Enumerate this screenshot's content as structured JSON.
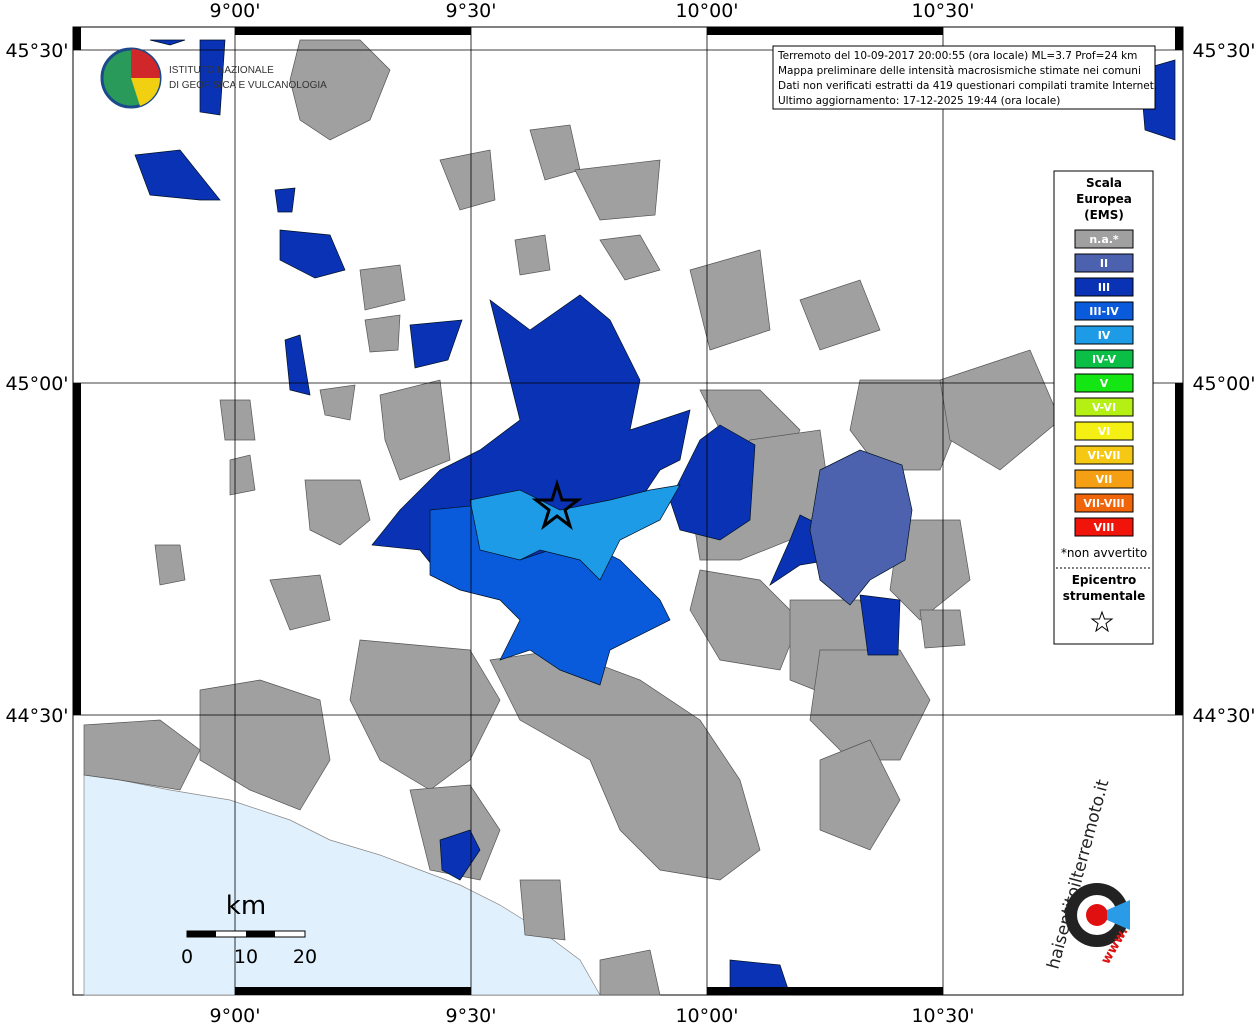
{
  "header": {
    "institute": [
      "ISTITUTO NAZIONALE",
      "DI GEOFISICA E VULCANOLOGIA"
    ]
  },
  "info": [
    "Terremoto del 10-09-2017 20:00:55 (ora locale) ML=3.7 Prof=24 km",
    "Mappa preliminare delle intensità macrosismiche stimate nei comuni",
    "Dati non verificati estratti da 419 questionari compilati tramite Internet.",
    "Ultimo aggiornamento: 17-12-2025 19:44 (ora locale)"
  ],
  "map": {
    "lon_labels": [
      "9°00'",
      "9°30'",
      "10°00'",
      "10°30'"
    ],
    "lat_labels": [
      "45°30'",
      "45°00'",
      "44°30'"
    ]
  },
  "legend": {
    "title": [
      "Scala",
      "Europea",
      "(EMS)"
    ],
    "items": [
      {
        "label": "n.a.*",
        "color": "#a0a0a0"
      },
      {
        "label": "II",
        "color": "#4d62ae"
      },
      {
        "label": "III",
        "color": "#0a32b4"
      },
      {
        "label": "III-IV",
        "color": "#0a5adc"
      },
      {
        "label": "IV",
        "color": "#1e9be6"
      },
      {
        "label": "IV-V",
        "color": "#0abe46"
      },
      {
        "label": "V",
        "color": "#14e614"
      },
      {
        "label": "V-VI",
        "color": "#b4f014"
      },
      {
        "label": "VI",
        "color": "#f5f014"
      },
      {
        "label": "VI-VII",
        "color": "#f5c814"
      },
      {
        "label": "VII",
        "color": "#f5a014"
      },
      {
        "label": "VII-VIII",
        "color": "#f0640a"
      },
      {
        "label": "VIII",
        "color": "#f0140a"
      }
    ],
    "note": "*non avvertito",
    "epicenter": [
      "Epicentro",
      "strumentale"
    ]
  },
  "scale": {
    "unit": "km",
    "ticks": [
      "0",
      "10",
      "20"
    ]
  },
  "badge": {
    "site": "haisentitoilterremoto.it",
    "prefix": "www."
  }
}
